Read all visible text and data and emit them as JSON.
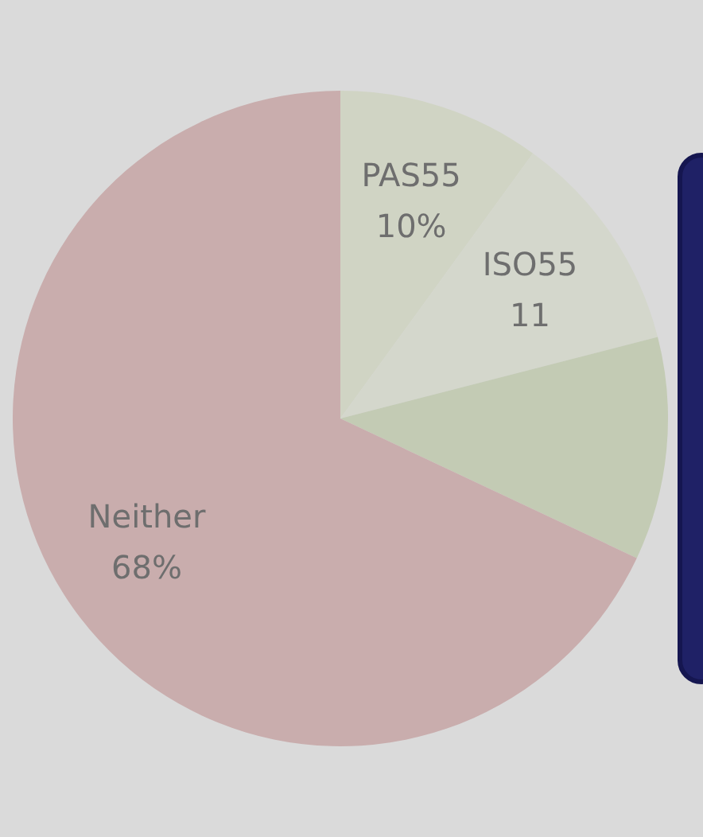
{
  "chart_data": {
    "type": "pie",
    "categories": [
      "PAS55",
      "ISO55",
      null,
      "Neither"
    ],
    "values": [
      10,
      11,
      11,
      68
    ],
    "value_labels": [
      "10%",
      "11",
      null,
      "68%"
    ],
    "colors": [
      "#d0d4c4",
      "#d4d7cc",
      "#c3cbb4",
      "#c9adad"
    ],
    "legend": false
  }
}
